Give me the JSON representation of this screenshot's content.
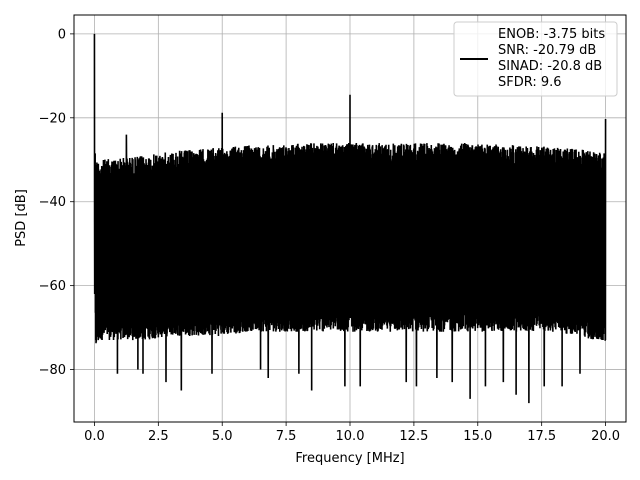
{
  "chart_data": {
    "type": "line",
    "title": "",
    "xlabel": "Frequency [MHz]",
    "ylabel": "PSD [dB]",
    "xlim": [
      -0.8,
      20.8
    ],
    "ylim": [
      -92.5,
      4.5
    ],
    "xticks": [
      0.0,
      2.5,
      5.0,
      7.5,
      10.0,
      12.5,
      15.0,
      17.5,
      20.0
    ],
    "xtick_labels": [
      "0.0",
      "2.5",
      "5.0",
      "7.5",
      "10.0",
      "12.5",
      "15.0",
      "17.5",
      "20.0"
    ],
    "yticks": [
      0,
      -20,
      -40,
      -60,
      -80
    ],
    "ytick_labels": [
      "0",
      "−20",
      "−40",
      "−60",
      "−80"
    ],
    "grid": true,
    "legend_position": "top-right",
    "line_color": "#000000",
    "series": [
      {
        "name": "",
        "legend_lines": [
          "ENOB: -3.75 bits",
          "SNR: -20.79 dB",
          "SINAD: -20.8 dB",
          "SFDR: 9.6"
        ],
        "envelope": {
          "x": [
            0.0,
            0.05,
            0.25,
            1.0,
            2.0,
            3.0,
            4.0,
            5.0,
            6.0,
            7.0,
            8.0,
            9.0,
            10.0,
            11.0,
            12.0,
            13.0,
            14.0,
            15.0,
            16.0,
            17.0,
            18.0,
            19.0,
            19.5,
            20.0
          ],
          "upper": [
            -24,
            -30,
            -30,
            -29.5,
            -29,
            -28,
            -27.5,
            -27,
            -26.5,
            -26.5,
            -26,
            -26,
            -26,
            -26,
            -26,
            -26,
            -26,
            -26,
            -26.5,
            -26.5,
            -27,
            -27.5,
            -28,
            -28.5
          ],
          "lower": [
            -50,
            -75,
            -73,
            -73,
            -73,
            -72,
            -72,
            -72,
            -71,
            -71,
            -71,
            -71,
            -71,
            -71,
            -71,
            -71,
            -71,
            -71,
            -71,
            -71,
            -71,
            -72,
            -73,
            -74
          ]
        },
        "spikes": [
          {
            "x": 0.0,
            "y": 0.0
          },
          {
            "x": 1.25,
            "y": -24.0
          },
          {
            "x": 5.0,
            "y": -18.8
          },
          {
            "x": 10.0,
            "y": -14.5
          },
          {
            "x": 20.0,
            "y": -20.3
          }
        ],
        "dips": [
          {
            "x": 0.9,
            "y": -81
          },
          {
            "x": 1.7,
            "y": -80
          },
          {
            "x": 1.9,
            "y": -81
          },
          {
            "x": 2.8,
            "y": -83
          },
          {
            "x": 3.4,
            "y": -85
          },
          {
            "x": 4.6,
            "y": -81
          },
          {
            "x": 6.5,
            "y": -80
          },
          {
            "x": 6.8,
            "y": -82
          },
          {
            "x": 8.0,
            "y": -81
          },
          {
            "x": 8.5,
            "y": -85
          },
          {
            "x": 9.8,
            "y": -84
          },
          {
            "x": 10.4,
            "y": -84
          },
          {
            "x": 12.2,
            "y": -83
          },
          {
            "x": 12.6,
            "y": -84
          },
          {
            "x": 13.4,
            "y": -82
          },
          {
            "x": 14.0,
            "y": -83
          },
          {
            "x": 14.7,
            "y": -87
          },
          {
            "x": 15.3,
            "y": -84
          },
          {
            "x": 16.0,
            "y": -83
          },
          {
            "x": 16.5,
            "y": -86
          },
          {
            "x": 17.0,
            "y": -88
          },
          {
            "x": 17.6,
            "y": -84
          },
          {
            "x": 18.3,
            "y": -84
          },
          {
            "x": 19.0,
            "y": -81
          }
        ]
      }
    ]
  }
}
